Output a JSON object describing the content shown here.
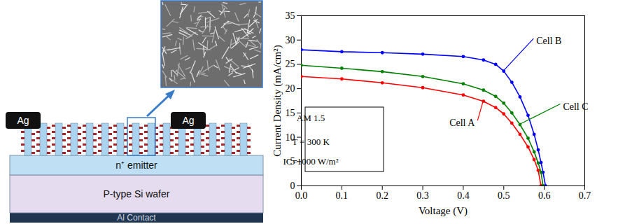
{
  "diagram": {
    "contacts": [
      "Ag",
      "Ag"
    ],
    "layers": [
      "n⁺ emitter",
      "P-type Si wafer",
      "Al Contact"
    ]
  },
  "chart_data": {
    "type": "line",
    "x_label": "Voltage (V)",
    "y_label": "Current Density (mA/cm²)",
    "annotations": [
      "AM 1.5",
      "T = 300 K",
      "IC=1000 W/m²"
    ],
    "x": [
      0,
      0.1,
      0.2,
      0.3,
      0.4,
      0.45,
      0.48,
      0.5,
      0.52,
      0.54,
      0.56,
      0.575,
      0.585,
      0.592,
      0.597,
      0.603
    ],
    "series": [
      {
        "name": "Cell A",
        "color": "#ff0000",
        "marker": "circle",
        "values": [
          22.5,
          22.0,
          21.2,
          20.2,
          18.7,
          17.4,
          16.1,
          14.8,
          12.9,
          10.6,
          8.0,
          5.4,
          3.2,
          0,
          null,
          null
        ]
      },
      {
        "name": "Cell B",
        "color": "#0000ff",
        "marker": "circle",
        "values": [
          28.0,
          27.6,
          27.4,
          27.1,
          26.6,
          25.9,
          25.0,
          23.6,
          21.3,
          18.3,
          14.5,
          10.6,
          7.4,
          4.8,
          2.8,
          0
        ]
      },
      {
        "name": "Cell C",
        "color": "#008000",
        "marker": "circle",
        "values": [
          24.8,
          24.2,
          23.5,
          22.5,
          21.0,
          19.7,
          18.4,
          17.0,
          15.0,
          12.6,
          9.8,
          7.0,
          4.7,
          2.8,
          0,
          null
        ]
      }
    ],
    "xlim": [
      0,
      0.7
    ],
    "xticks": [
      {
        "value": 0,
        "label": "0.0"
      },
      {
        "value": 0.1,
        "label": "0.1"
      },
      {
        "value": 0.2,
        "label": "0.2"
      },
      {
        "value": 0.3,
        "label": "0.3"
      },
      {
        "value": 0.4,
        "label": "0.4"
      },
      {
        "value": 0.5,
        "label": "0.5"
      },
      {
        "value": 0.6,
        "label": "0.6"
      },
      {
        "value": 0.7,
        "label": "0.7"
      }
    ],
    "ylim": [
      0,
      35
    ],
    "yticks": [
      0,
      5,
      10,
      15,
      20,
      25,
      30,
      35
    ],
    "grid": false
  }
}
